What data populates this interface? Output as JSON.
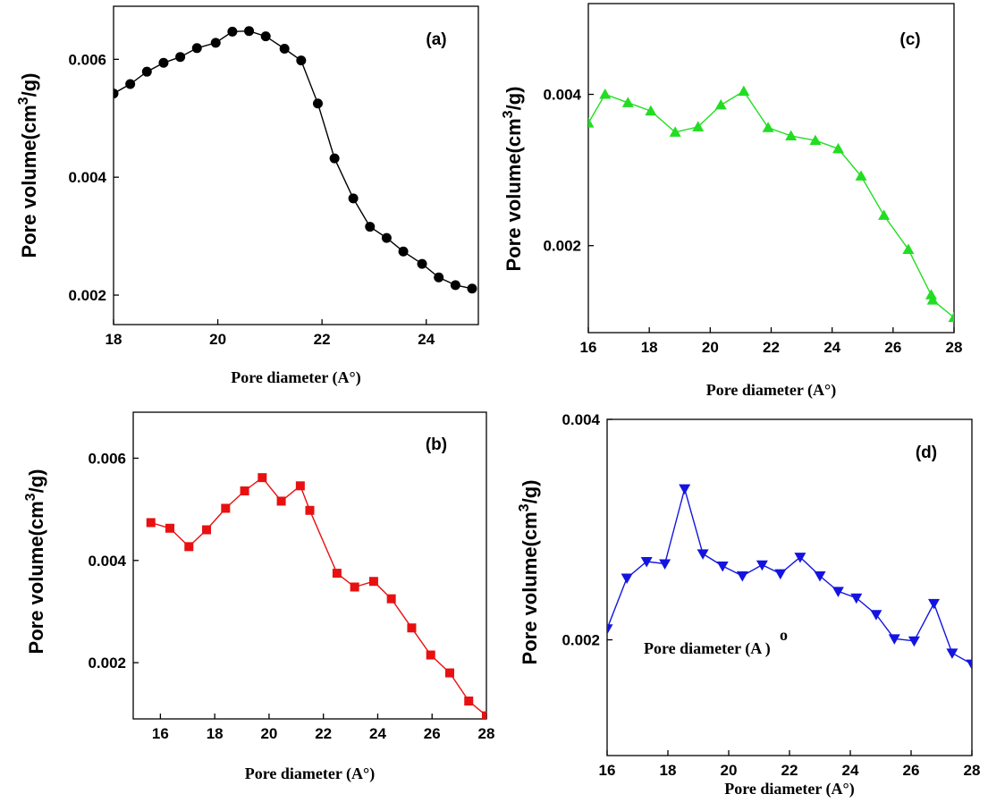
{
  "chart_data": [
    {
      "type": "line",
      "panel_label": "(a)",
      "xlabel": "Pore diameter (A°)",
      "ylabel": "Pore volume(cm3/g)",
      "xlim": [
        18,
        25
      ],
      "ylim": [
        0.0015,
        0.0069
      ],
      "xticks": [
        18,
        20,
        22,
        24
      ],
      "xtick_labels": [
        "18",
        "20",
        "22",
        "24"
      ],
      "yticks": [
        0.002,
        0.004,
        0.006
      ],
      "ytick_labels": [
        "0.002",
        "0.004",
        "0.006"
      ],
      "series": [
        {
          "color": "#000000",
          "marker": "circle",
          "x": [
            18.0,
            18.32,
            18.64,
            18.96,
            19.28,
            19.6,
            19.96,
            20.28,
            20.6,
            20.92,
            21.28,
            21.6,
            21.92,
            22.24,
            22.6,
            22.92,
            23.24,
            23.56,
            23.92,
            24.24,
            24.56,
            24.88
          ],
          "y": [
            0.00542,
            0.00558,
            0.00579,
            0.00594,
            0.00604,
            0.00619,
            0.00628,
            0.00647,
            0.00648,
            0.00639,
            0.00618,
            0.00598,
            0.00525,
            0.00432,
            0.00364,
            0.00316,
            0.00297,
            0.00274,
            0.00253,
            0.0023,
            0.00217,
            0.00211
          ]
        }
      ]
    },
    {
      "type": "line",
      "panel_label": "(b)",
      "xlabel": "Pore diameter (A°)",
      "ylabel": "Pore volume(cm3/g)",
      "xlim": [
        15,
        28
      ],
      "ylim": [
        0.0009,
        0.0069
      ],
      "xticks": [
        16,
        18,
        20,
        22,
        24,
        26,
        28
      ],
      "xtick_labels": [
        "16",
        "18",
        "20",
        "22",
        "24",
        "26",
        "28"
      ],
      "yticks": [
        0.002,
        0.004,
        0.006
      ],
      "ytick_labels": [
        "0.002",
        "0.004",
        "0.006"
      ],
      "series": [
        {
          "color": "#e81010",
          "marker": "square",
          "x": [
            15.65,
            16.35,
            17.05,
            17.7,
            18.4,
            19.1,
            19.75,
            20.45,
            21.15,
            21.5,
            22.5,
            23.15,
            23.85,
            24.5,
            25.25,
            25.95,
            26.65,
            27.35,
            28.0
          ],
          "y": [
            0.00474,
            0.00463,
            0.00427,
            0.0046,
            0.00502,
            0.00536,
            0.00562,
            0.00516,
            0.00546,
            0.00498,
            0.00375,
            0.00348,
            0.00359,
            0.00325,
            0.00268,
            0.00215,
            0.0018,
            0.00125,
            0.00096
          ]
        }
      ]
    },
    {
      "type": "line",
      "panel_label": "(c)",
      "xlabel": "Pore diameter (A°)",
      "ylabel": "Pore volume(cm3/g)",
      "xlim": [
        16,
        28
      ],
      "ylim": [
        0.00085,
        0.0052
      ],
      "xticks": [
        16,
        18,
        20,
        22,
        24,
        26,
        28
      ],
      "xtick_labels": [
        "16",
        "18",
        "20",
        "22",
        "24",
        "26",
        "28"
      ],
      "yticks": [
        0.002,
        0.004
      ],
      "ytick_labels": [
        "0.002",
        "0.004"
      ],
      "series": [
        {
          "color": "#22dd22",
          "marker": "triangle-up",
          "x": [
            16.0,
            16.55,
            17.3,
            18.05,
            18.85,
            19.6,
            20.35,
            21.1,
            21.9,
            22.65,
            23.45,
            24.2,
            24.95,
            25.7,
            26.5,
            27.25,
            27.3,
            28.0
          ],
          "y": [
            0.00362,
            0.004,
            0.00389,
            0.00378,
            0.0035,
            0.00357,
            0.00386,
            0.00404,
            0.00356,
            0.00345,
            0.00339,
            0.00328,
            0.00292,
            0.0024,
            0.00195,
            0.00135,
            0.00128,
            0.00105
          ]
        }
      ]
    },
    {
      "type": "line",
      "panel_label": "(d)",
      "xlabel": "Pore diameter (A°)",
      "ylabel": "Pore volume(cm3/g)",
      "annotation": "Pore diameter (A )",
      "annotation_sup": "o",
      "xlim": [
        16,
        28
      ],
      "ylim": [
        0.00095,
        0.004
      ],
      "xticks": [
        16,
        18,
        20,
        22,
        24,
        26,
        28
      ],
      "xtick_labels": [
        "16",
        "18",
        "20",
        "22",
        "24",
        "26",
        "28"
      ],
      "yticks": [
        0.002,
        0.004
      ],
      "ytick_labels": [
        "0.002",
        "0.004"
      ],
      "series": [
        {
          "color": "#1414e0",
          "marker": "triangle-down",
          "x": [
            16.0,
            16.65,
            17.3,
            17.9,
            18.55,
            19.15,
            19.8,
            20.45,
            21.1,
            21.7,
            22.35,
            23.0,
            23.6,
            24.2,
            24.85,
            25.45,
            26.1,
            26.75,
            27.35,
            28.0
          ],
          "y": [
            0.0021,
            0.00256,
            0.00271,
            0.00269,
            0.00337,
            0.00278,
            0.00267,
            0.00258,
            0.00268,
            0.0026,
            0.00275,
            0.00258,
            0.00244,
            0.00238,
            0.00223,
            0.00201,
            0.00199,
            0.00233,
            0.00188,
            0.00178
          ]
        }
      ]
    }
  ]
}
